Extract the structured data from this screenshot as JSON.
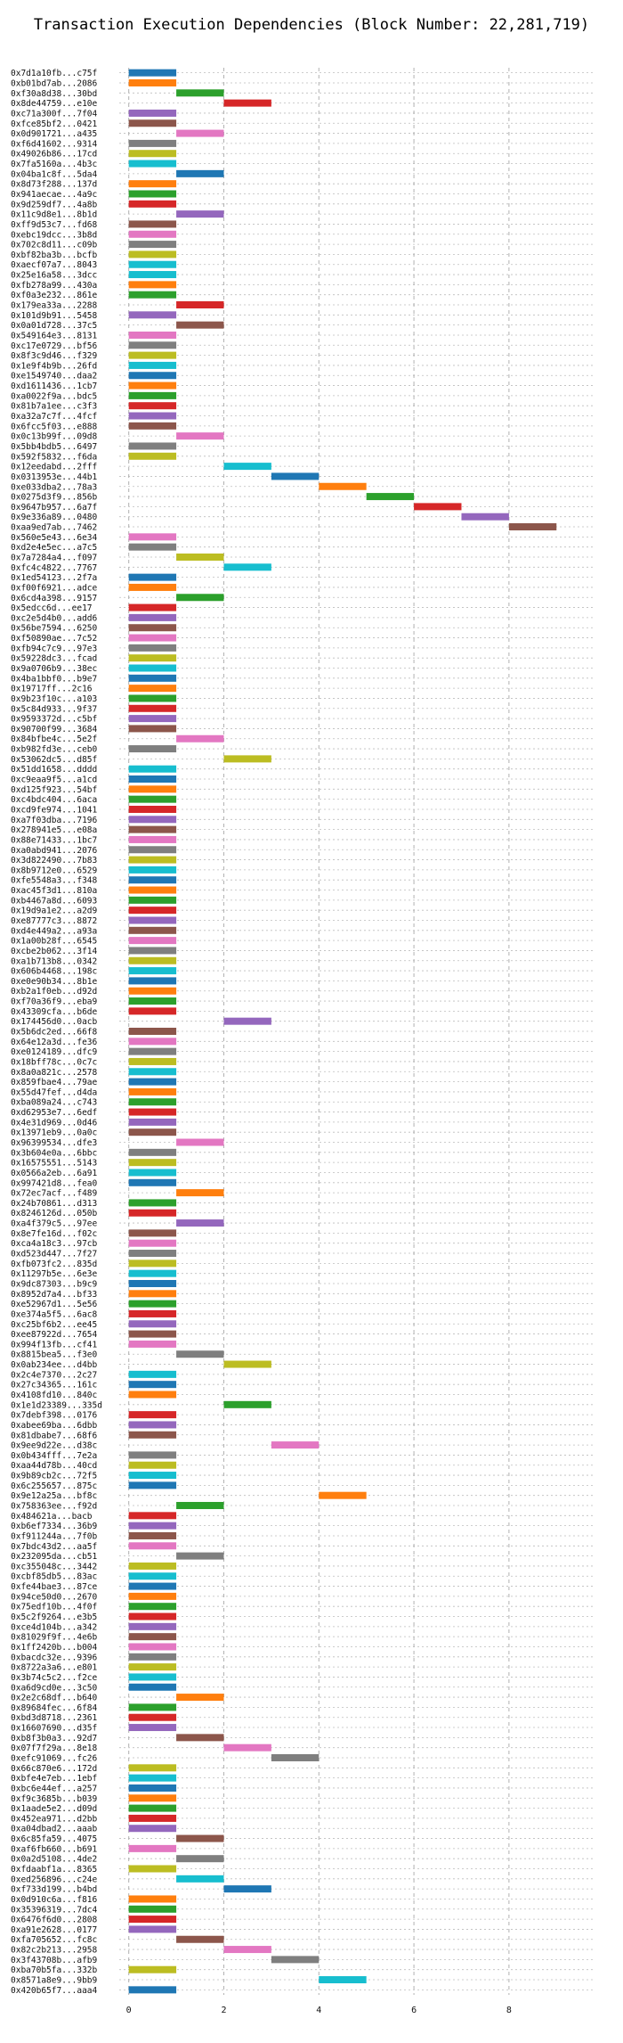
{
  "chart_data": {
    "type": "bar",
    "orientation": "horizontal",
    "title": "Transaction Execution Dependencies (Block Number: 22,281,719)",
    "xlabel": "",
    "ylabel": "",
    "xlim": [
      -0.2,
      9.8
    ],
    "xticks": [
      0,
      2,
      4,
      6,
      8
    ],
    "grid": true,
    "bar_palette": [
      "#1f77b4",
      "#ff7f0e",
      "#2ca02c",
      "#d62728",
      "#9467bd",
      "#8c564b",
      "#e377c2",
      "#7f7f7f",
      "#bcbd22",
      "#17becf"
    ],
    "categories": [
      "0x7d1a10fb...c75f",
      "0xb01bd7ab...2086",
      "0xf30a8d38...30bd",
      "0x8de44759...e10e",
      "0xc71a300f...7f04",
      "0xfce85bf2...0421",
      "0x0d901721...a435",
      "0xf6d41602...9314",
      "0x49026b86...17cd",
      "0x7fa5160a...4b3c",
      "0x04ba1c8f...5da4",
      "0x8d73f288...137d",
      "0x941aecae...4a9c",
      "0x9d259df7...4a8b",
      "0x11c9d8e1...8b1d",
      "0xff9d53c7...fd68",
      "0xebc19dcc...3b8d",
      "0x702c8d11...c09b",
      "0xbf82ba3b...bcfb",
      "0xaecf07a7...8043",
      "0x25e16a58...3dcc",
      "0xfb278a99...430a",
      "0xf0a3e232...861e",
      "0x179ea33a...2288",
      "0x101d9b91...5458",
      "0x0a01d728...37c5",
      "0x549164e3...8131",
      "0xc17e0729...bf56",
      "0x8f3c9d46...f329",
      "0x1e9f4b9b...26fd",
      "0xe1549740...daa2",
      "0xd1611436...1cb7",
      "0xa0022f9a...bdc5",
      "0x81b7a1ee...c3f3",
      "0xa32a7c7f...4fcf",
      "0x6fcc5f03...e888",
      "0x0c13b99f...09d8",
      "0x5bb4bdb5...6497",
      "0x592f5832...f6da",
      "0x12eedabd...2fff",
      "0x0313953e...44b1",
      "0xe033dba2...78a3",
      "0x0275d3f9...856b",
      "0x9647b957...6a7f",
      "0x9e336a89...0480",
      "0xaa9ed7ab...7462",
      "0x560e5e43...6e34",
      "0xd2e4e5ec...a7c5",
      "0x7a7284a4...f097",
      "0xfc4c4822...7767",
      "0x1ed54123...2f7a",
      "0xf00f6921...adce",
      "0x6cd4a398...9157",
      "0x5edcc6d...ee17",
      "0xc2e5d4b0...add6",
      "0x56be7594...6250",
      "0xf50890ae...7c52",
      "0xfb94c7c9...97e3",
      "0x59228dc3...fcad",
      "0x9a0706b9...38ec",
      "0x4ba1bbf0...b9e7",
      "0x19717ff...2c16",
      "0x9b23f10c...a103",
      "0x5c84d933...9f37",
      "0x9593372d...c5bf",
      "0x90700f99...3684",
      "0x84bfbe4c...5e2f",
      "0xb982fd3e...ceb0",
      "0x53062dc5...d85f",
      "0x51dd1658...dddd",
      "0xc9eaa9f5...a1cd",
      "0xd125f923...54bf",
      "0xc4bdc404...6aca",
      "0xcd9fe974...1041",
      "0xa7f03dba...7196",
      "0x278941e5...e08a",
      "0x88e71433...1bc7",
      "0xa0abd941...2076",
      "0x3d822490...7b83",
      "0x8b9712e0...6529",
      "0xfe5548a3...f348",
      "0xac45f3d1...810a",
      "0xb4467a8d...6093",
      "0x19d9a1e2...a2d9",
      "0xe87777c3...8872",
      "0xd4e449a2...a93a",
      "0x1a00b28f...6545",
      "0xcbe2b062...3f14",
      "0xa1b713b8...0342",
      "0x606b4468...198c",
      "0xe0e90b34...8b1e",
      "0xb2a1f0eb...d92d",
      "0xf70a36f9...eba9",
      "0x43309cfa...b6de",
      "0x174456d0...0acb",
      "0x5b6dc2ed...66f8",
      "0x64e12a3d...fe36",
      "0xe0124189...dfc9",
      "0x18bff78c...0c7c",
      "0x8a0a821c...2578",
      "0x859fbae4...79ae",
      "0x55d47fef...d4da",
      "0xba089a24...c743",
      "0xd62953e7...6edf",
      "0x4e31d969...0d46",
      "0x13971eb9...0a0c",
      "0x96399534...dfe3",
      "0x3b604e0a...6bbc",
      "0x16575551...5143",
      "0x0566a2eb...6a91",
      "0x997421d8...fea0",
      "0x72ec7acf...f489",
      "0x24b70861...d313",
      "0x8246126d...050b",
      "0xa4f379c5...97ee",
      "0x8e7fe16d...f02c",
      "0xca4a18c3...97cb",
      "0xd523d447...7f27",
      "0xfb073fc2...835d",
      "0x11297b5e...6e3e",
      "0x9dc87303...b9c9",
      "0x8952d7a4...bf33",
      "0xe52967d1...5e56",
      "0xe374a5f5...6ac8",
      "0xc25bf6b2...ee45",
      "0xee87922d...7654",
      "0x994f13fb...cf41",
      "0x8815bea5...f3e0",
      "0x0ab234ee...d4bb",
      "0x2c4e7370...2c27",
      "0x27c34365...161c",
      "0x4108fd10...840c",
      "0x1e1d23389...335d",
      "0x7debf398...0176",
      "0xabee69ba...6dbb",
      "0x81dbabe7...68f6",
      "0x9ee9d22e...d38c",
      "0x0b434fff...7e2a",
      "0xaa44d78b...40cd",
      "0x9b89cb2c...72f5",
      "0x6c255657...875c",
      "0x9e12a25a...bf8c",
      "0x758363ee...f92d",
      "0x484621a...bacb",
      "0xb6ef7334...36b9",
      "0xf911244a...7f0b",
      "0x7bdc43d2...aa5f",
      "0x232095da...cb51",
      "0xc355048c...3442",
      "0xcbf85db5...83ac",
      "0xfe44bae3...87ce",
      "0x94ce50d0...2670",
      "0x75edf10b...4f0f",
      "0x5c2f9264...e3b5",
      "0xce4d104b...a342",
      "0x81029f9f...4e6b",
      "0x1ff2420b...b004",
      "0xbacdc32e...9396",
      "0x8722a3a6...e801",
      "0x3b74c5c2...f2ce",
      "0xa6d9cd0e...3c50",
      "0x2e2c68df...b640",
      "0x89684fec...6f84",
      "0xbd3d8718...2361",
      "0x16607690...d35f",
      "0xb8f3b0a3...92d7",
      "0x07f7f29a...8e18",
      "0xefc91069...fc26",
      "0x66c870e6...172d",
      "0xbfe4e7eb...1ebf",
      "0xbc6e44ef...a257",
      "0xf9c3685b...b039",
      "0x1aade5e2...d09d",
      "0x452ea971...d2bb",
      "0xa04dbad2...aaab",
      "0x6c85fa59...4075",
      "0xaf6fb660...b691",
      "0x0a2d5108...4de2",
      "0xfdaabf1a...8365",
      "0xed256896...c24e",
      "0xf733d199...b4bd",
      "0x0d910c6a...f816",
      "0x35396319...7dc4",
      "0x6476f6d0...2808",
      "0xa91e2628...0177",
      "0xfa705652...fc8c",
      "0x82c2b213...2958",
      "0x3f43708b...afb9",
      "0xba70b5fa...332b",
      "0x8571a8e9...9bb9",
      "0x420b65f7...aaa4"
    ],
    "starts": [
      0,
      0,
      1,
      2,
      0,
      0,
      1,
      0,
      0,
      0,
      1,
      0,
      0,
      0,
      1,
      0,
      0,
      0,
      0,
      0,
      0,
      0,
      0,
      1,
      0,
      1,
      0,
      0,
      0,
      0,
      0,
      0,
      0,
      0,
      0,
      0,
      1,
      0,
      0,
      2,
      3,
      4,
      5,
      6,
      7,
      8,
      0,
      0,
      1,
      2,
      0,
      0,
      1,
      0,
      0,
      0,
      0,
      0,
      0,
      0,
      0,
      0,
      0,
      0,
      0,
      0,
      1,
      0,
      2,
      0,
      0,
      0,
      0,
      0,
      0,
      0,
      0,
      0,
      0,
      0,
      0,
      0,
      0,
      0,
      0,
      0,
      0,
      0,
      0,
      0,
      0,
      0,
      0,
      0,
      2,
      0,
      0,
      0,
      0,
      0,
      0,
      0,
      0,
      0,
      0,
      0,
      1,
      0,
      0,
      0,
      0,
      1,
      0,
      0,
      1,
      0,
      0,
      0,
      0,
      0,
      0,
      0,
      0,
      0,
      0,
      0,
      0,
      1,
      2,
      0,
      0,
      0,
      2,
      0,
      0,
      0,
      3,
      0,
      0,
      0,
      0,
      4,
      1,
      0,
      0,
      0,
      0,
      1,
      0,
      0,
      0,
      0,
      0,
      0,
      0,
      0,
      0,
      0,
      0,
      0,
      0,
      1,
      0,
      0,
      0,
      1,
      2,
      3,
      0,
      0,
      0,
      0,
      0,
      0,
      0,
      1,
      0,
      1,
      0,
      1,
      2,
      0,
      0,
      0,
      0,
      1,
      2,
      3,
      0,
      4,
      0
    ],
    "bar_colors": [
      "#1f77b4",
      "#ff7f0e",
      "#2ca02c",
      "#d62728",
      "#9467bd",
      "#8c564b",
      "#e377c2",
      "#7f7f7f",
      "#bcbd22",
      "#17becf",
      "#1f77b4",
      "#ff7f0e",
      "#2ca02c",
      "#d62728",
      "#9467bd",
      "#8c564b",
      "#e377c2",
      "#7f7f7f",
      "#bcbd22",
      "#17becf",
      "#17becf",
      "#ff7f0e",
      "#2ca02c",
      "#d62728",
      "#9467bd",
      "#8c564b",
      "#e377c2",
      "#7f7f7f",
      "#bcbd22",
      "#17becf",
      "#1f77b4",
      "#ff7f0e",
      "#2ca02c",
      "#d62728",
      "#9467bd",
      "#8c564b",
      "#e377c2",
      "#7f7f7f",
      "#bcbd22",
      "#17becf",
      "#1f77b4",
      "#ff7f0e",
      "#2ca02c",
      "#d62728",
      "#9467bd",
      "#8c564b",
      "#e377c2",
      "#7f7f7f",
      "#bcbd22",
      "#17becf",
      "#1f77b4",
      "#ff7f0e",
      "#2ca02c",
      "#d62728",
      "#9467bd",
      "#8c564b",
      "#e377c2",
      "#7f7f7f",
      "#bcbd22",
      "#17becf",
      "#1f77b4",
      "#ff7f0e",
      "#2ca02c",
      "#d62728",
      "#9467bd",
      "#8c564b",
      "#e377c2",
      "#7f7f7f",
      "#bcbd22",
      "#17becf",
      "#1f77b4",
      "#ff7f0e",
      "#2ca02c",
      "#d62728",
      "#9467bd",
      "#8c564b",
      "#e377c2",
      "#7f7f7f",
      "#bcbd22",
      "#17becf",
      "#1f77b4",
      "#ff7f0e",
      "#2ca02c",
      "#d62728",
      "#9467bd",
      "#8c564b",
      "#e377c2",
      "#7f7f7f",
      "#bcbd22",
      "#17becf",
      "#1f77b4",
      "#ff7f0e",
      "#2ca02c",
      "#d62728",
      "#9467bd",
      "#8c564b",
      "#e377c2",
      "#7f7f7f",
      "#bcbd22",
      "#17becf",
      "#1f77b4",
      "#ff7f0e",
      "#2ca02c",
      "#d62728",
      "#9467bd",
      "#8c564b",
      "#e377c2",
      "#7f7f7f",
      "#bcbd22",
      "#17becf",
      "#1f77b4",
      "#ff7f0e",
      "#2ca02c",
      "#d62728",
      "#9467bd",
      "#8c564b",
      "#e377c2",
      "#7f7f7f",
      "#bcbd22",
      "#17becf",
      "#1f77b4",
      "#ff7f0e",
      "#2ca02c",
      "#d62728",
      "#9467bd",
      "#8c564b",
      "#e377c2",
      "#7f7f7f",
      "#bcbd22",
      "#17becf",
      "#1f77b4",
      "#ff7f0e",
      "#2ca02c",
      "#d62728",
      "#9467bd",
      "#8c564b",
      "#e377c2",
      "#7f7f7f",
      "#bcbd22",
      "#17becf",
      "#1f77b4",
      "#ff7f0e",
      "#2ca02c",
      "#d62728",
      "#9467bd",
      "#8c564b",
      "#e377c2",
      "#7f7f7f",
      "#bcbd22",
      "#17becf",
      "#1f77b4",
      "#ff7f0e",
      "#2ca02c",
      "#d62728",
      "#9467bd",
      "#8c564b",
      "#e377c2",
      "#7f7f7f",
      "#bcbd22",
      "#17becf",
      "#1f77b4",
      "#ff7f0e",
      "#2ca02c",
      "#d62728",
      "#9467bd",
      "#8c564b",
      "#e377c2",
      "#7f7f7f",
      "#bcbd22",
      "#17becf",
      "#1f77b4",
      "#ff7f0e",
      "#2ca02c",
      "#d62728",
      "#9467bd",
      "#8c564b",
      "#e377c2",
      "#7f7f7f",
      "#bcbd22",
      "#17becf",
      "#1f77b4",
      "#ff7f0e",
      "#2ca02c",
      "#d62728",
      "#9467bd",
      "#8c564b",
      "#e377c2",
      "#7f7f7f",
      "#bcbd22",
      "#17becf",
      "#1f77b4"
    ],
    "duration": 1
  }
}
